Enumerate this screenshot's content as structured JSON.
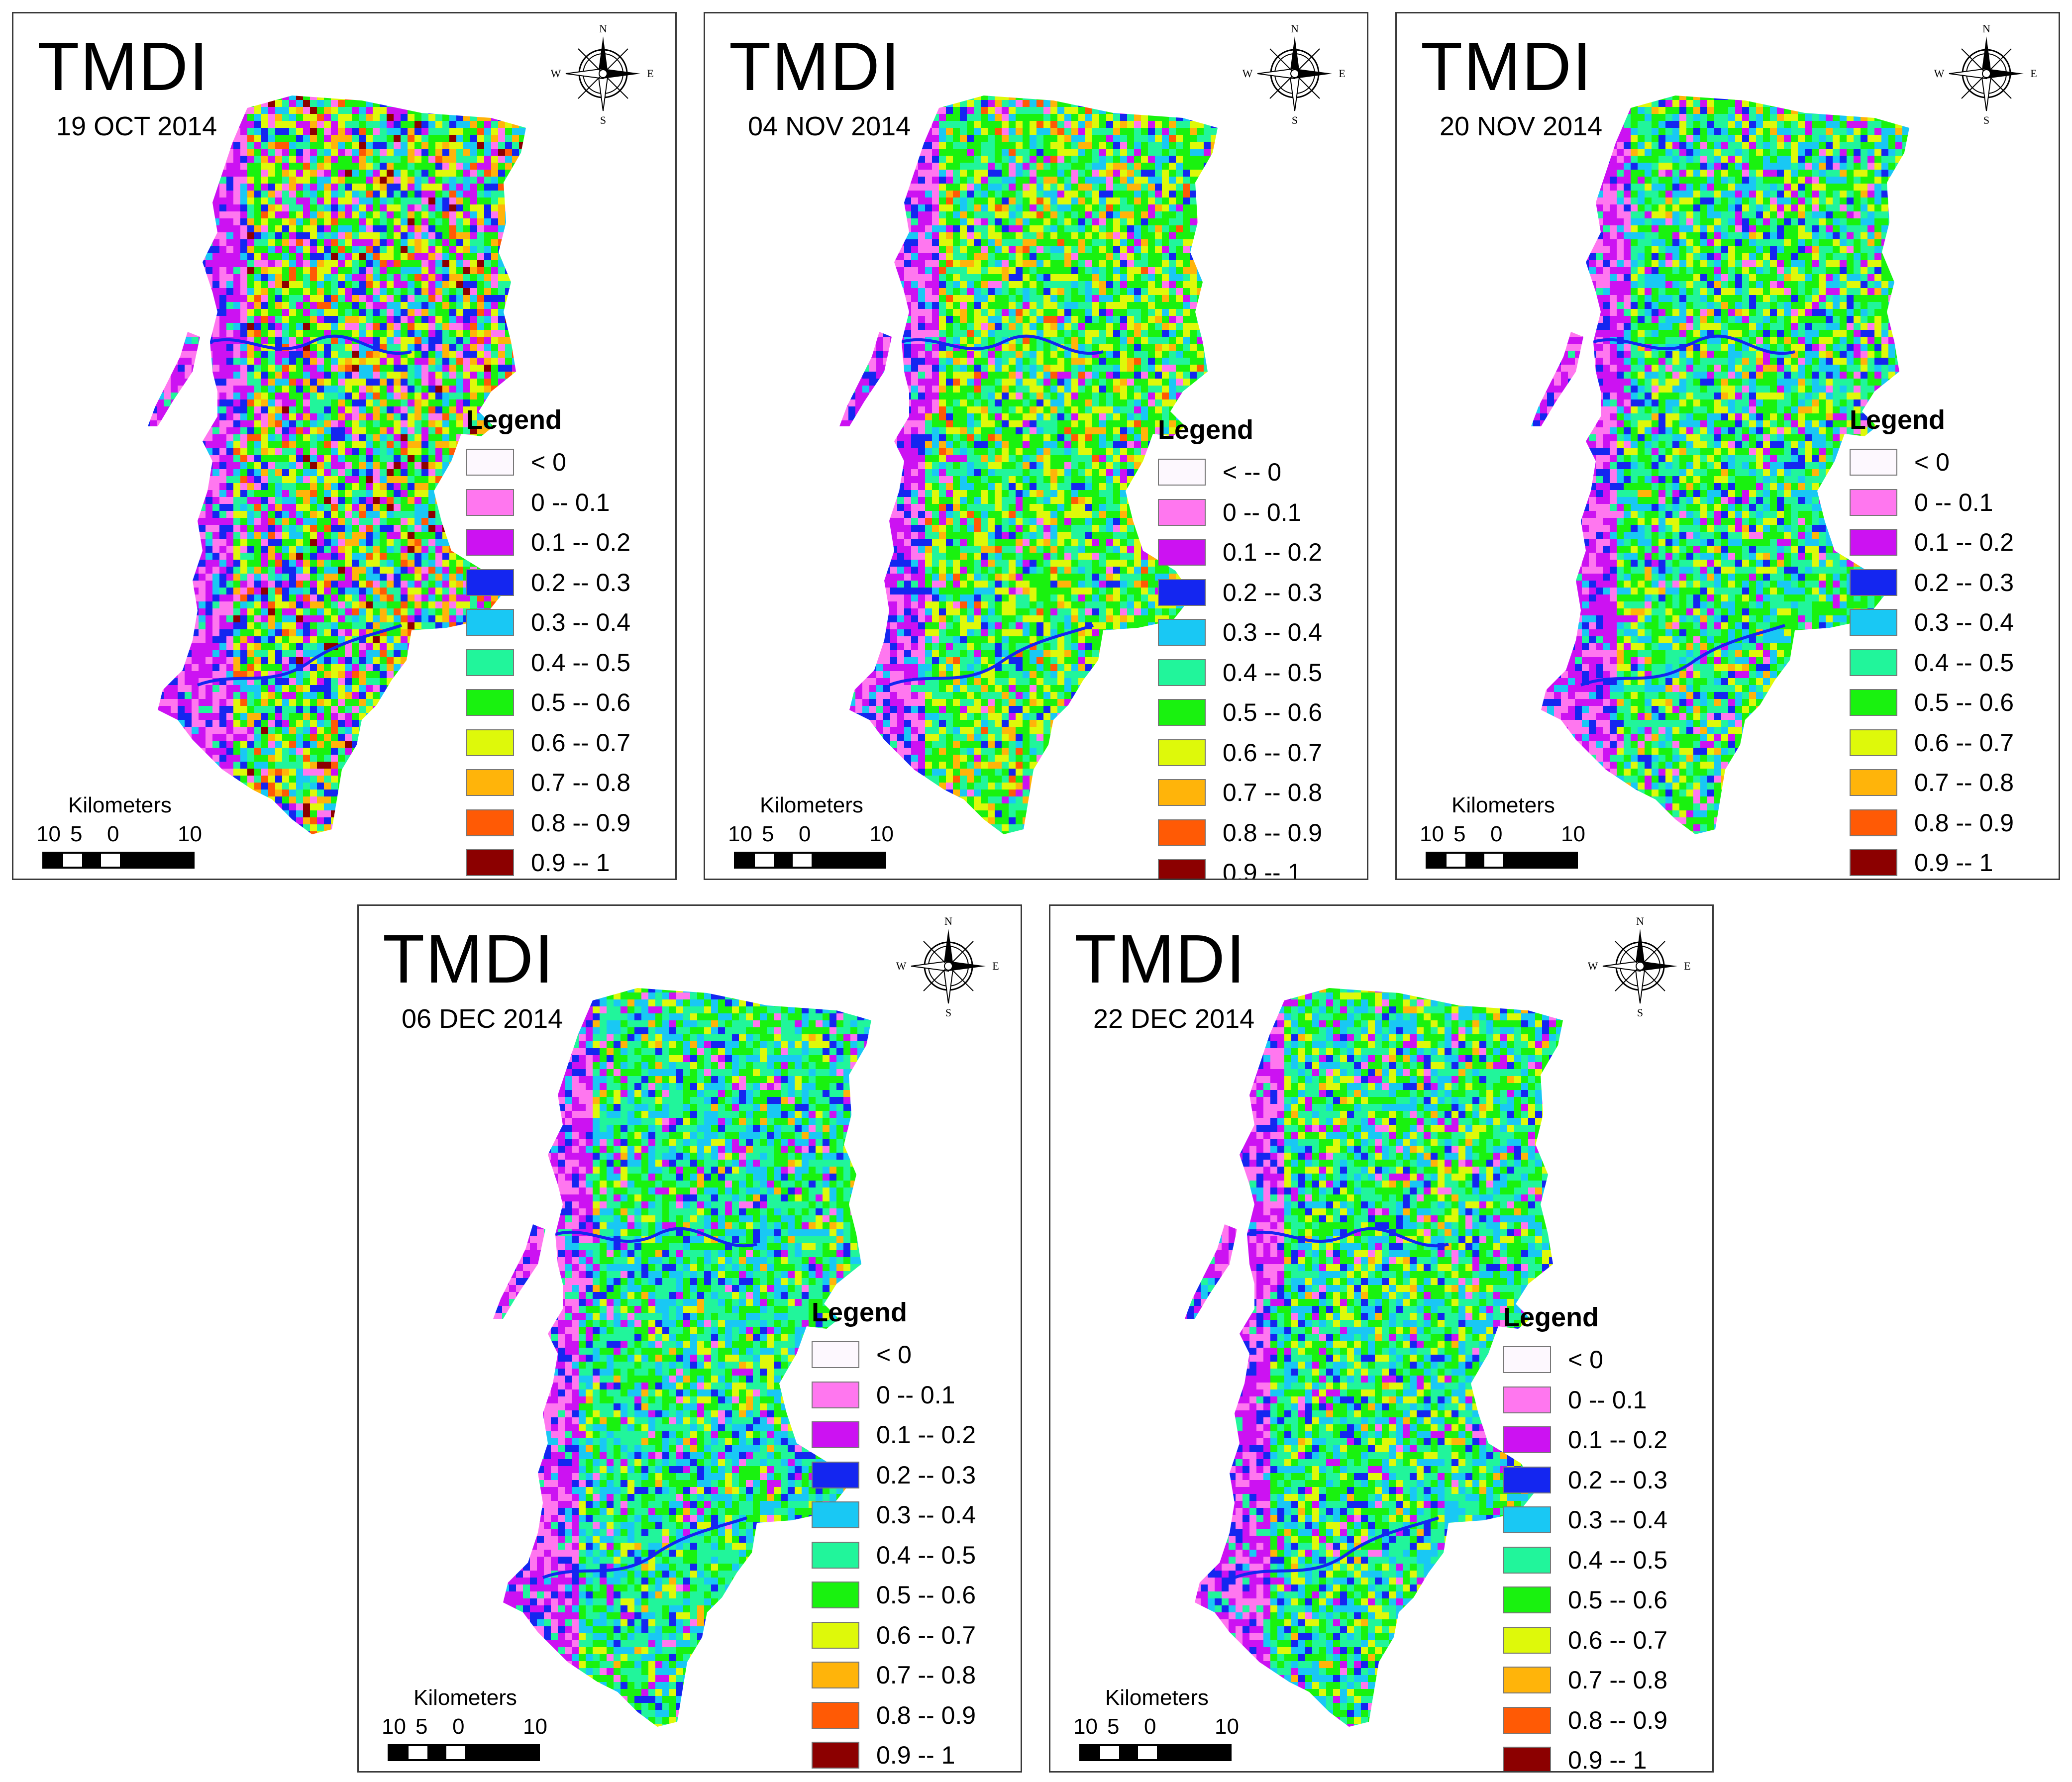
{
  "panels": [
    {
      "title": "TMDI",
      "date": "19 OCT 2014",
      "pattern": "oct"
    },
    {
      "title": "TMDI",
      "date": "04 NOV 2014",
      "pattern": "nov4"
    },
    {
      "title": "TMDI",
      "date": "20 NOV 2014",
      "pattern": "nov20"
    },
    {
      "title": "TMDI",
      "date": "06 DEC 2014",
      "pattern": "dec6"
    },
    {
      "title": "TMDI",
      "date": "22 DEC 2014",
      "pattern": "dec22"
    }
  ],
  "legend": {
    "title": "Legend",
    "items": [
      {
        "label": "<  0",
        "color": "#fdf8fe"
      },
      {
        "label": "0 -- 0.1",
        "color": "#ff77ef"
      },
      {
        "label": "0.1 -- 0.2",
        "color": "#cc12f2"
      },
      {
        "label": "0.2 -- 0.3",
        "color": "#1426f0"
      },
      {
        "label": "0.3 -- 0.4",
        "color": "#19c8f4"
      },
      {
        "label": "0.4 -- 0.5",
        "color": "#21f59b"
      },
      {
        "label": "0.5 -- 0.6",
        "color": "#19f20f"
      },
      {
        "label": "0.6 -- 0.7",
        "color": "#def90a"
      },
      {
        "label": "0.7 -- 0.8",
        "color": "#ffb40a"
      },
      {
        "label": "0.8 -- 0.9",
        "color": "#ff5a05"
      },
      {
        "label": "0.9 -- 1",
        "color": "#8c0000"
      }
    ]
  },
  "legend_variant_panel2": {
    "first_label": "<  -- 0"
  },
  "scalebar": {
    "title": "Kilometers",
    "ticks": [
      "10",
      "5",
      "0",
      "10"
    ]
  },
  "compass": {
    "n": "N",
    "e": "E",
    "s": "S",
    "w": "W"
  }
}
